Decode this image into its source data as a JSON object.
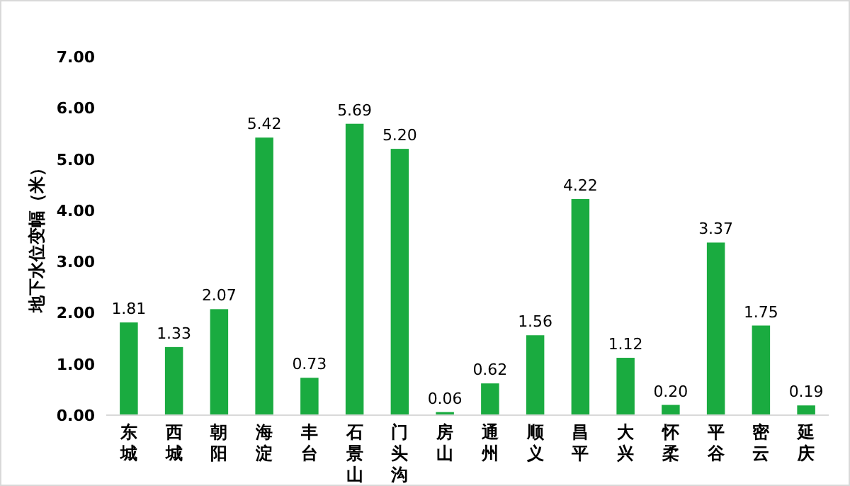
{
  "chart_data": {
    "type": "bar",
    "ylabel": "地下水位变幅（米）",
    "categories": [
      "东城",
      "西城",
      "朝阳",
      "海淀",
      "丰台",
      "石景山",
      "门头沟",
      "房山",
      "通州",
      "顺义",
      "昌平",
      "大兴",
      "怀柔",
      "平谷",
      "密云",
      "延庆"
    ],
    "values": [
      1.81,
      1.33,
      2.07,
      5.42,
      0.73,
      5.69,
      5.2,
      0.06,
      0.62,
      1.56,
      4.22,
      1.12,
      0.2,
      3.37,
      1.75,
      0.19
    ],
    "value_labels": [
      "1.81",
      "1.33",
      "2.07",
      "5.42",
      "0.73",
      "5.69",
      "5.20",
      "0.06",
      "0.62",
      "1.56",
      "4.22",
      "1.12",
      "0.20",
      "3.37",
      "1.75",
      "0.19"
    ],
    "color": "#1aab40",
    "ylim": [
      0,
      7
    ],
    "yticks": [
      {
        "value": 0,
        "label": "0.00"
      },
      {
        "value": 1,
        "label": "1.00"
      },
      {
        "value": 2,
        "label": "2.00"
      },
      {
        "value": 3,
        "label": "3.00"
      },
      {
        "value": 4,
        "label": "4.00"
      },
      {
        "value": 5,
        "label": "5.00"
      },
      {
        "value": 6,
        "label": "6.00"
      },
      {
        "value": 7,
        "label": "7.00"
      }
    ],
    "grid": false
  }
}
